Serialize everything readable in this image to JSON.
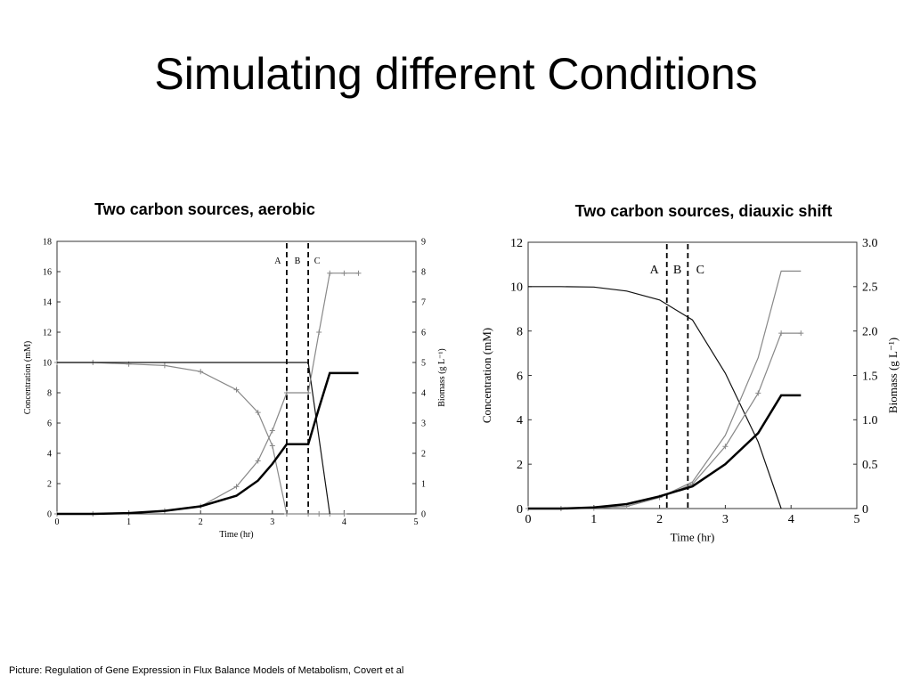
{
  "title": "Simulating different Conditions",
  "caption": "Picture: Regulation of Gene Expression in Flux Balance Models of Metabolism, Covert et al",
  "chart_data": [
    {
      "type": "line",
      "title": "Two carbon sources, aerobic",
      "xlabel": "Time (hr)",
      "ylabel": "Concentration (mM)",
      "y2label": "Biomass (g L⁻¹)",
      "xlim": [
        0,
        5
      ],
      "xticks": [
        0,
        1,
        2,
        3,
        4,
        5
      ],
      "ylim": [
        0,
        18
      ],
      "yticks": [
        0,
        2,
        4,
        6,
        8,
        10,
        12,
        14,
        16,
        18
      ],
      "y2lim": [
        0,
        9
      ],
      "y2ticks": [
        0,
        1,
        2,
        3,
        4,
        5,
        6,
        7,
        8,
        9
      ],
      "vlines": [
        3.2,
        3.5
      ],
      "annotations": [
        "A",
        "B",
        "C"
      ],
      "x": [
        0,
        0.5,
        1,
        1.5,
        2,
        2.5,
        2.8,
        3,
        3.2,
        3.5,
        3.65,
        3.8,
        4,
        4.2
      ],
      "series": [
        {
          "color": "#888888",
          "markers": true,
          "width": 1.2,
          "values": [
            10,
            10,
            9.9,
            9.8,
            9.4,
            8.2,
            6.7,
            4.5,
            0,
            0,
            0,
            0,
            0,
            null
          ]
        },
        {
          "color": "#111111",
          "markers": false,
          "width": 1.2,
          "values": [
            10,
            10,
            10,
            10,
            10,
            10,
            10,
            10,
            10,
            10,
            5,
            0,
            null,
            null
          ]
        },
        {
          "color": "#888888",
          "markers": true,
          "width": 1.2,
          "values": [
            0,
            0,
            0.05,
            0.2,
            0.5,
            1.8,
            3.5,
            5.5,
            8,
            8,
            12,
            15.9,
            15.9,
            15.9
          ]
        },
        {
          "color": "#000000",
          "markers": false,
          "width": 2.5,
          "values": [
            0,
            0,
            0.05,
            0.2,
            0.5,
            1.2,
            2.2,
            3.3,
            4.6,
            4.6,
            7,
            9.3,
            9.3,
            9.3
          ]
        }
      ]
    },
    {
      "type": "line",
      "title": "Two carbon sources, diauxic shift",
      "xlabel": "Time (hr)",
      "ylabel": "Concentration (mM)",
      "y2label": "Biomass (g L⁻¹)",
      "xlim": [
        0,
        5
      ],
      "xticks": [
        0,
        1,
        2,
        3,
        4,
        5
      ],
      "ylim": [
        0,
        12
      ],
      "yticks": [
        0,
        2,
        4,
        6,
        8,
        10,
        12
      ],
      "y2lim": [
        0,
        3
      ],
      "y2ticks": [
        0,
        0.5,
        {
          "value": 1,
          "label": "1.0"
        },
        1.5,
        {
          "value": 2,
          "label": "2.0"
        },
        2.5,
        {
          "value": 3,
          "label": "3.0"
        }
      ],
      "vlines": [
        2.11,
        2.43
      ],
      "annotations": [
        "A",
        "B",
        "C"
      ],
      "x": [
        0,
        0.5,
        1,
        1.5,
        2,
        2.5,
        3,
        3.5,
        3.85,
        4.15
      ],
      "series": [
        {
          "color": "#111111",
          "markers": false,
          "width": 1.2,
          "values": [
            10,
            10,
            9.98,
            9.8,
            9.4,
            8.5,
            6.1,
            3,
            0,
            null
          ]
        },
        {
          "color": "#888888",
          "markers": false,
          "width": 1.2,
          "values": [
            0,
            0,
            0.02,
            0.1,
            0.5,
            1.2,
            3.3,
            6.8,
            10.7,
            10.7
          ]
        },
        {
          "color": "#888888",
          "markers": true,
          "width": 1.2,
          "values": [
            0,
            0,
            0.02,
            0.1,
            0.5,
            1.1,
            2.8,
            5.2,
            7.9,
            7.9
          ]
        },
        {
          "color": "#000000",
          "markers": false,
          "width": 2.5,
          "values": [
            0,
            0,
            0.05,
            0.2,
            0.55,
            1,
            2,
            3.4,
            5.1,
            5.1
          ]
        }
      ]
    }
  ]
}
